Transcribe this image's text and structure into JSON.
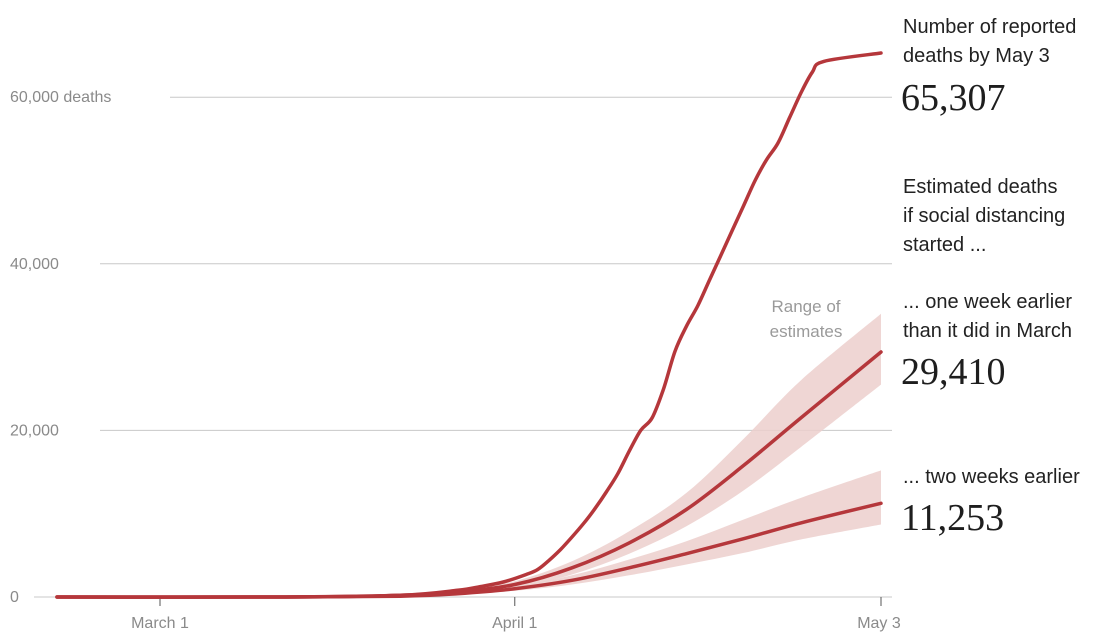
{
  "chart_data": {
    "type": "line",
    "x_labels": [
      "March 1",
      "April 1",
      "May 3"
    ],
    "y_ticks": [
      {
        "value": 0,
        "label": "0"
      },
      {
        "value": 20000,
        "label": "20,000"
      },
      {
        "value": 40000,
        "label": "40,000"
      },
      {
        "value": 60000,
        "label": "60,000 deaths"
      }
    ],
    "ylim": [
      0,
      65307
    ],
    "x_range": [
      "Feb 20",
      "May 3"
    ],
    "grid": true,
    "colors": {
      "line": "#b5373b",
      "band": "#eccfcc",
      "grid": "#c8c8c8",
      "text": "#222222",
      "muted": "#8a8a8a"
    },
    "series": [
      {
        "name": "reported",
        "x": [
          0,
          20,
          30,
          35,
          37,
          39,
          41,
          42,
          43,
          44,
          45,
          46,
          47,
          48,
          49,
          50,
          51,
          52,
          53,
          54,
          55,
          56,
          57,
          58,
          59,
          60,
          61,
          62,
          63,
          64,
          65,
          66,
          67,
          68,
          69,
          70,
          71,
          72
        ],
        "y": [
          0,
          0,
          200,
          800,
          1250,
          1800,
          2700,
          3300,
          4400,
          5700,
          7200,
          8800,
          10600,
          12600,
          14800,
          17500,
          20000,
          21500,
          25000,
          29500,
          32500,
          35000,
          38000,
          41000,
          44000,
          47000,
          50000,
          52500,
          54500,
          57500,
          60500,
          63000,
          64300,
          65307,
          65307,
          65307,
          65307,
          65307
        ]
      },
      {
        "name": "one-week-earlier",
        "x": [
          0,
          20,
          30,
          35,
          40,
          45,
          50,
          55,
          60,
          65,
          72
        ],
        "y": [
          0,
          0,
          200,
          600,
          1500,
          3500,
          6500,
          10500,
          15800,
          21500,
          29410
        ],
        "y_low": [
          0,
          0,
          150,
          450,
          1100,
          2700,
          5200,
          8500,
          12800,
          18000,
          25500
        ],
        "y_high": [
          0,
          0,
          250,
          750,
          1900,
          4300,
          7900,
          12500,
          19000,
          26000,
          34000
        ]
      },
      {
        "name": "two-weeks-earlier",
        "x": [
          0,
          20,
          30,
          35,
          40,
          45,
          50,
          55,
          60,
          65,
          72
        ],
        "y": [
          0,
          0,
          100,
          400,
          1000,
          2000,
          3500,
          5200,
          7000,
          8900,
          11253
        ],
        "y_low": [
          0,
          0,
          80,
          300,
          750,
          1500,
          2600,
          3900,
          5300,
          6900,
          8700
        ],
        "y_high": [
          0,
          0,
          130,
          500,
          1250,
          2600,
          4500,
          6700,
          9300,
          11900,
          15200
        ]
      }
    ],
    "annotations": {
      "reported_label": [
        "Number of reported",
        "deaths by May 3"
      ],
      "reported_value": "65,307",
      "estimated_header": [
        "Estimated deaths",
        "if social distancing",
        "started ..."
      ],
      "one_week_label": [
        "... one week earlier",
        "than it did in March"
      ],
      "one_week_value": "29,410",
      "two_weeks_label": "... two weeks earlier",
      "two_weeks_value": "11,253",
      "range_label": [
        "Range of",
        "estimates"
      ]
    }
  }
}
